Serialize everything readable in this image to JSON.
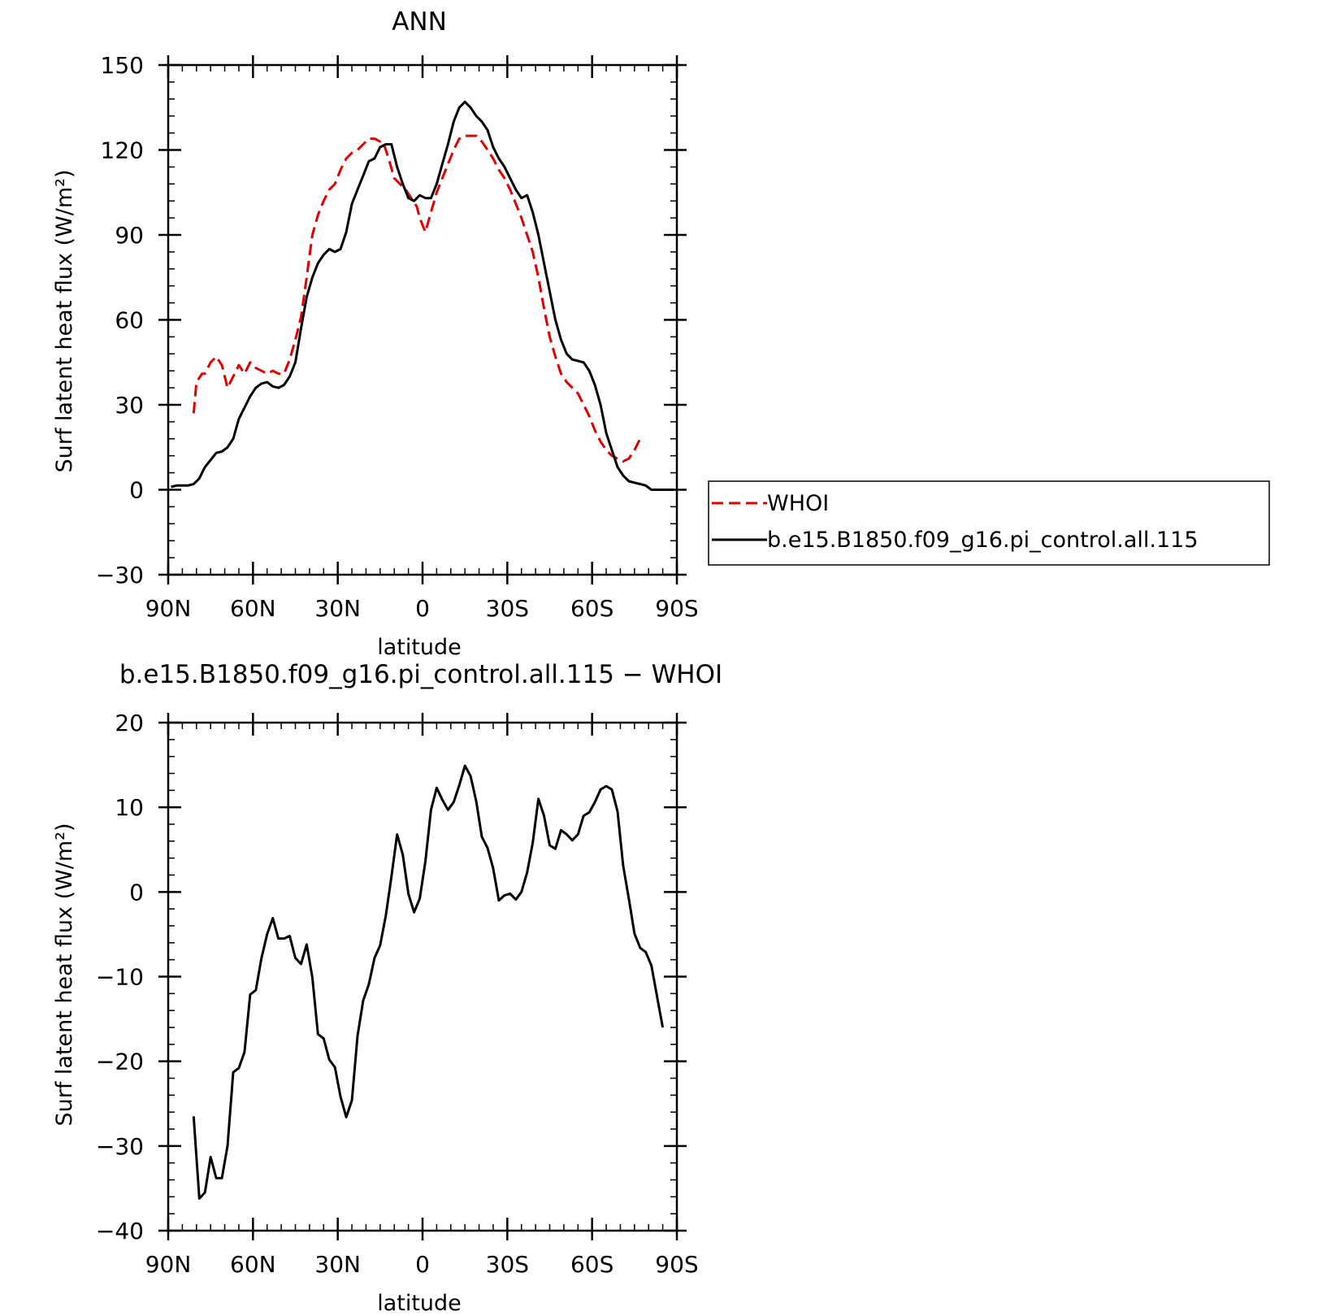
{
  "chart_data": [
    {
      "type": "line",
      "title": "ANN",
      "xlabel": "latitude",
      "ylabel": "Surf latent heat flux (W/m²)",
      "xlim": [
        90,
        -90
      ],
      "ylim": [
        -30,
        150
      ],
      "xticks": [
        90,
        60,
        30,
        0,
        -30,
        -60,
        -90
      ],
      "xtick_labels": [
        "90N",
        "60N",
        "30N",
        "0",
        "30S",
        "60S",
        "90S"
      ],
      "yticks": [
        -30,
        0,
        30,
        60,
        90,
        120,
        150
      ],
      "ytick_labels": [
        "−30",
        "0",
        "30",
        "60",
        "90",
        "120",
        "150"
      ],
      "legend_position": "right",
      "series": [
        {
          "name": "WHOI",
          "color": "#e00000",
          "dash": true,
          "points": [
            [
              81,
              27
            ],
            [
              80,
              38
            ],
            [
              78,
              41
            ],
            [
              77,
              41
            ],
            [
              75,
              45
            ],
            [
              73,
              47
            ],
            [
              71,
              44
            ],
            [
              69,
              36
            ],
            [
              67,
              40
            ],
            [
              65,
              44
            ],
            [
              63,
              41
            ],
            [
              61,
              45
            ],
            [
              59,
              43
            ],
            [
              57,
              42
            ],
            [
              55,
              41
            ],
            [
              53,
              42
            ],
            [
              51,
              41
            ],
            [
              49,
              41
            ],
            [
              47,
              46
            ],
            [
              45,
              53
            ],
            [
              43,
              61
            ],
            [
              41,
              75
            ],
            [
              39,
              90
            ],
            [
              37,
              97
            ],
            [
              35,
              102
            ],
            [
              33,
              106
            ],
            [
              31,
              108
            ],
            [
              29,
              113
            ],
            [
              27,
              117
            ],
            [
              25,
              119
            ],
            [
              23,
              120
            ],
            [
              21,
              122
            ],
            [
              19,
              124
            ],
            [
              17,
              124
            ],
            [
              15,
              123
            ],
            [
              14,
              123
            ],
            [
              12,
              117
            ],
            [
              10,
              110
            ],
            [
              8,
              108
            ],
            [
              6,
              106
            ],
            [
              4,
              103
            ],
            [
              2,
              100
            ],
            [
              1,
              96
            ],
            [
              -1,
              91
            ],
            [
              -3,
              98
            ],
            [
              -5,
              105
            ],
            [
              -7,
              110
            ],
            [
              -9,
              115
            ],
            [
              -11,
              120
            ],
            [
              -13,
              124
            ],
            [
              -15,
              125
            ],
            [
              -17,
              125
            ],
            [
              -19,
              125
            ],
            [
              -21,
              123
            ],
            [
              -23,
              120
            ],
            [
              -25,
              117
            ],
            [
              -27,
              113
            ],
            [
              -29,
              110
            ],
            [
              -31,
              106
            ],
            [
              -33,
              101
            ],
            [
              -35,
              96
            ],
            [
              -37,
              90
            ],
            [
              -39,
              84
            ],
            [
              -41,
              75
            ],
            [
              -43,
              64
            ],
            [
              -45,
              54
            ],
            [
              -47,
              47
            ],
            [
              -49,
              41
            ],
            [
              -51,
              38
            ],
            [
              -53,
              36
            ],
            [
              -55,
              34
            ],
            [
              -57,
              30
            ],
            [
              -59,
              26
            ],
            [
              -61,
              21
            ],
            [
              -63,
              17
            ],
            [
              -65,
              14
            ],
            [
              -67,
              12
            ],
            [
              -69,
              11
            ],
            [
              -71,
              10
            ],
            [
              -73,
              11
            ],
            [
              -75,
              14
            ],
            [
              -77,
              18
            ]
          ]
        },
        {
          "name": "b.e15.B1850.f09_g16.pi_control.all.115",
          "color": "#000000",
          "dash": false,
          "points": [
            [
              89,
              1
            ],
            [
              87,
              1.5
            ],
            [
              85,
              1.5
            ],
            [
              83,
              1.5
            ],
            [
              81,
              2
            ],
            [
              79,
              4
            ],
            [
              77,
              8
            ],
            [
              75,
              10.5
            ],
            [
              73,
              13
            ],
            [
              71,
              13.5
            ],
            [
              69,
              15
            ],
            [
              67,
              18
            ],
            [
              65,
              25
            ],
            [
              63,
              29
            ],
            [
              61,
              33
            ],
            [
              59,
              36
            ],
            [
              57,
              37.5
            ],
            [
              55,
              38
            ],
            [
              53,
              36.5
            ],
            [
              51,
              36
            ],
            [
              49,
              37
            ],
            [
              47,
              40
            ],
            [
              45,
              45
            ],
            [
              43,
              57
            ],
            [
              41,
              68
            ],
            [
              39,
              75
            ],
            [
              37,
              80
            ],
            [
              35,
              83
            ],
            [
              33,
              85
            ],
            [
              31,
              84
            ],
            [
              29,
              85
            ],
            [
              27,
              91
            ],
            [
              25,
              101
            ],
            [
              23,
              106
            ],
            [
              21,
              111
            ],
            [
              19,
              116
            ],
            [
              17,
              117
            ],
            [
              15,
              121
            ],
            [
              13,
              122
            ],
            [
              11,
              122
            ],
            [
              9,
              114
            ],
            [
              7,
              108
            ],
            [
              5,
              103
            ],
            [
              3,
              102
            ],
            [
              1,
              104
            ],
            [
              -1,
              103
            ],
            [
              -3,
              103
            ],
            [
              -5,
              108
            ],
            [
              -7,
              115
            ],
            [
              -9,
              122
            ],
            [
              -11,
              130
            ],
            [
              -13,
              135
            ],
            [
              -15,
              137
            ],
            [
              -17,
              135
            ],
            [
              -19,
              132
            ],
            [
              -21,
              130
            ],
            [
              -23,
              127
            ],
            [
              -25,
              121
            ],
            [
              -27,
              117
            ],
            [
              -29,
              114
            ],
            [
              -31,
              110
            ],
            [
              -33,
              106
            ],
            [
              -35,
              103
            ],
            [
              -37,
              104
            ],
            [
              -39,
              98
            ],
            [
              -41,
              90
            ],
            [
              -43,
              80
            ],
            [
              -45,
              70
            ],
            [
              -47,
              60
            ],
            [
              -49,
              53
            ],
            [
              -51,
              48
            ],
            [
              -53,
              46
            ],
            [
              -55,
              45.5
            ],
            [
              -57,
              45
            ],
            [
              -59,
              42
            ],
            [
              -61,
              37
            ],
            [
              -63,
              30
            ],
            [
              -65,
              20
            ],
            [
              -67,
              14
            ],
            [
              -69,
              8
            ],
            [
              -71,
              5
            ],
            [
              -73,
              3
            ],
            [
              -75,
              2.5
            ],
            [
              -77,
              2
            ],
            [
              -79,
              1.5
            ],
            [
              -81,
              0
            ],
            [
              -83,
              0
            ],
            [
              -85,
              0
            ],
            [
              -87,
              0
            ],
            [
              -89,
              0
            ]
          ]
        }
      ]
    },
    {
      "type": "line",
      "title": "b.e15.B1850.f09_g16.pi_control.all.115 − WHOI",
      "xlabel": "latitude",
      "ylabel": "Surf latent heat flux (W/m²)",
      "xlim": [
        90,
        -90
      ],
      "ylim": [
        -40,
        20
      ],
      "xticks": [
        90,
        60,
        30,
        0,
        -30,
        -60,
        -90
      ],
      "xtick_labels": [
        "90N",
        "60N",
        "30N",
        "0",
        "30S",
        "60S",
        "90S"
      ],
      "yticks": [
        -40,
        -30,
        -20,
        -10,
        0,
        10,
        20
      ],
      "ytick_labels": [
        "−40",
        "−30",
        "−20",
        "−10",
        "0",
        "10",
        "20"
      ],
      "series": [
        {
          "color": "#000000",
          "dash": false,
          "points": [
            [
              81,
              -26.5
            ],
            [
              79,
              -36.2
            ],
            [
              77,
              -35.5
            ],
            [
              75,
              -31.3
            ],
            [
              73,
              -33.8
            ],
            [
              71,
              -33.8
            ],
            [
              69,
              -30
            ],
            [
              67,
              -21.3
            ],
            [
              65,
              -20.8
            ],
            [
              63,
              -18.9
            ],
            [
              61,
              -12.1
            ],
            [
              59,
              -11.6
            ],
            [
              57,
              -7.8
            ],
            [
              55,
              -5
            ],
            [
              53,
              -3.1
            ],
            [
              51,
              -5.5
            ],
            [
              49,
              -5.5
            ],
            [
              47,
              -5.2
            ],
            [
              45,
              -7.8
            ],
            [
              43,
              -8.5
            ],
            [
              41,
              -6.2
            ],
            [
              39,
              -10.1
            ],
            [
              37,
              -16.8
            ],
            [
              35,
              -17.3
            ],
            [
              33,
              -19.8
            ],
            [
              31,
              -20.7
            ],
            [
              29,
              -24.2
            ],
            [
              27,
              -26.6
            ],
            [
              25,
              -24.6
            ],
            [
              23,
              -17
            ],
            [
              21,
              -12.8
            ],
            [
              19,
              -10.9
            ],
            [
              17,
              -7.8
            ],
            [
              15,
              -6.3
            ],
            [
              13,
              -2.8
            ],
            [
              11,
              1.8
            ],
            [
              9,
              6.8
            ],
            [
              7,
              4.4
            ],
            [
              5,
              -0.2
            ],
            [
              3,
              -2.4
            ],
            [
              1,
              -0.8
            ],
            [
              -1,
              3.6
            ],
            [
              -3,
              9.7
            ],
            [
              -5,
              12.3
            ],
            [
              -7,
              10.9
            ],
            [
              -9,
              9.7
            ],
            [
              -11,
              10.6
            ],
            [
              -13,
              12.6
            ],
            [
              -15,
              14.9
            ],
            [
              -17,
              13.7
            ],
            [
              -19,
              10.7
            ],
            [
              -21,
              6.5
            ],
            [
              -23,
              5.2
            ],
            [
              -25,
              2.8
            ],
            [
              -27,
              -1
            ],
            [
              -29,
              -0.4
            ],
            [
              -31,
              -0.2
            ],
            [
              -33,
              -0.9
            ],
            [
              -35,
              0
            ],
            [
              -37,
              2.3
            ],
            [
              -39,
              5.8
            ],
            [
              -41,
              11
            ],
            [
              -43,
              9
            ],
            [
              -45,
              5.5
            ],
            [
              -47,
              5.1
            ],
            [
              -49,
              7.3
            ],
            [
              -51,
              6.8
            ],
            [
              -53,
              6.1
            ],
            [
              -55,
              6.8
            ],
            [
              -57,
              9
            ],
            [
              -59,
              9.4
            ],
            [
              -61,
              10.6
            ],
            [
              -63,
              12.1
            ],
            [
              -65,
              12.5
            ],
            [
              -67,
              12.1
            ],
            [
              -69,
              9.5
            ],
            [
              -71,
              3.1
            ],
            [
              -73,
              -0.8
            ],
            [
              -75,
              -4.9
            ],
            [
              -77,
              -6.6
            ],
            [
              -79,
              -7.1
            ],
            [
              -81,
              -8.7
            ],
            [
              -83,
              -12.4
            ],
            [
              -85,
              -16
            ]
          ]
        }
      ]
    }
  ]
}
